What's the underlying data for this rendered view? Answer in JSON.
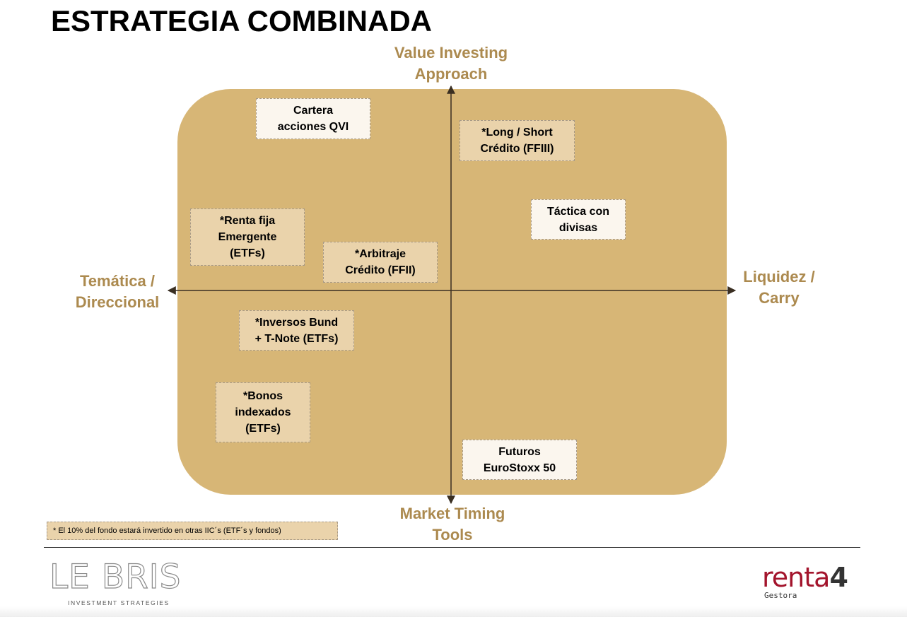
{
  "title": "ESTRATEGIA COMBINADA",
  "axes": {
    "top": [
      "Value Investing",
      "Approach"
    ],
    "bottom": [
      "Market Timing",
      "Tools"
    ],
    "left": [
      "Temática /",
      "Direccional"
    ],
    "right": [
      "Liquidez /",
      "Carry"
    ]
  },
  "boxes": [
    {
      "label": "Cartera\nacciones QVI",
      "style": "light"
    },
    {
      "label": "*Long / Short\nCrédito (FFIII)",
      "style": "tan"
    },
    {
      "label": "Táctica con\ndivisas",
      "style": "light"
    },
    {
      "label": "*Renta fija\nEmergente\n(ETFs)",
      "style": "tan"
    },
    {
      "label": "*Arbitraje\nCrédito (FFII)",
      "style": "tan"
    },
    {
      "label": "*Inversos Bund\n+ T-Note (ETFs)",
      "style": "tan"
    },
    {
      "label": "*Bonos\nindexados\n(ETFs)",
      "style": "tan"
    },
    {
      "label": "Futuros\nEuroStoxx 50",
      "style": "light"
    }
  ],
  "footnote": "* El 10% del fondo estará invertido en otras IIC´s (ETF´s y fondos)",
  "logos": {
    "left": {
      "name": "LE BRIS",
      "tagline": "INVESTMENT STRATEGIES"
    },
    "right": {
      "name": "renta",
      "number": "4",
      "tagline": "Gestora"
    }
  },
  "colors": {
    "panel": "#d7b676",
    "axis_label": "#ac8a4f",
    "box_light": "#fbf6ee",
    "box_tan": "#ead3ab",
    "renta_red": "#a3142c"
  }
}
